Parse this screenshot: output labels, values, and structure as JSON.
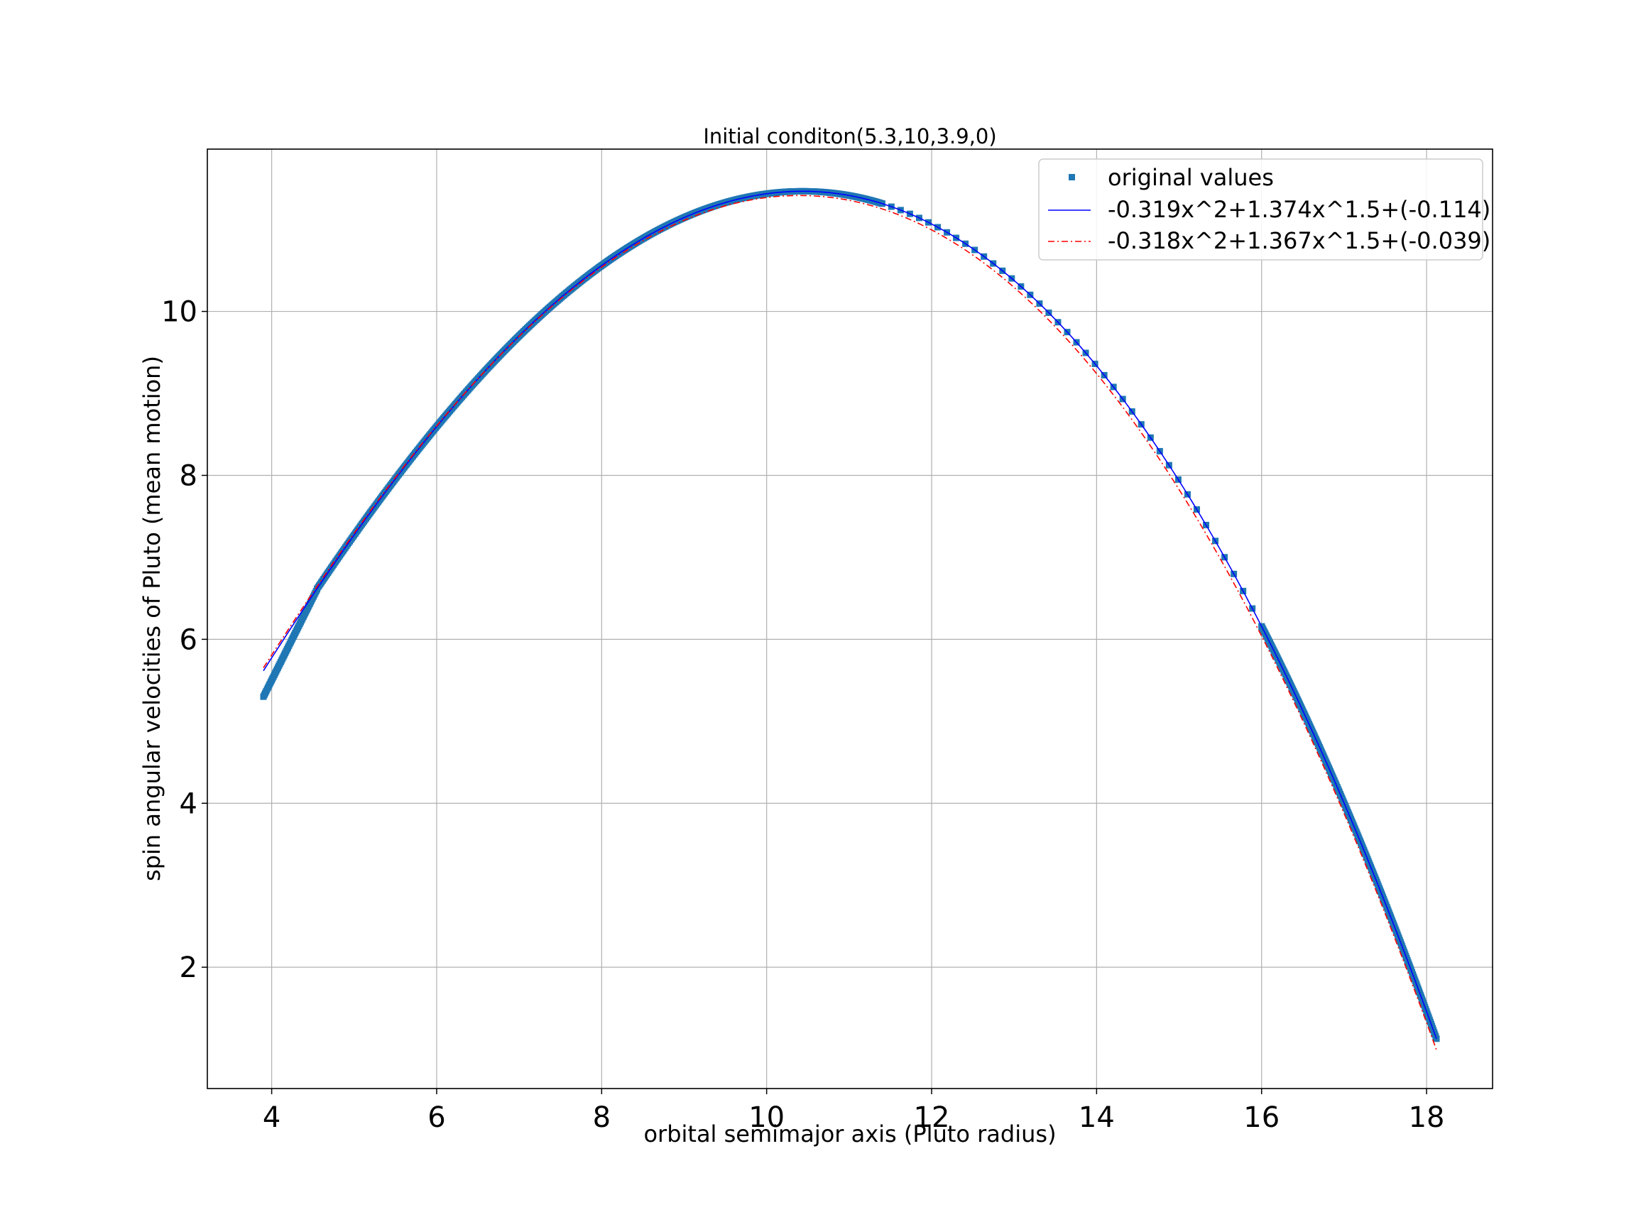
{
  "chart_data": {
    "type": "scatter",
    "title": "Initial conditon(5.3,10,3.9,0)",
    "xlabel": "orbital semimajor axis (Pluto radius)",
    "ylabel": "spin angular velocities of Pluto (mean motion)",
    "xlim": [
      3.22,
      18.8
    ],
    "ylim": [
      0.52,
      11.98
    ],
    "xticks": [
      4,
      6,
      8,
      10,
      12,
      14,
      16,
      18
    ],
    "yticks": [
      2,
      4,
      6,
      8,
      10
    ],
    "grid": true,
    "legend_position": "top-right",
    "series": [
      {
        "name": "original values",
        "kind": "markers",
        "color": "#1f77b4",
        "marker": "square",
        "segments": [
          {
            "x_start": 3.9,
            "x_end": 4.55,
            "count": 60,
            "y_start": 5.3,
            "y_end": 6.61
          },
          {
            "x_start": 4.55,
            "x_end": 11.4,
            "count": 520
          },
          {
            "x_start": 11.4,
            "x_end": 16.0,
            "count": 42
          },
          {
            "x_start": 16.0,
            "x_end": 18.12,
            "count": 230
          }
        ]
      },
      {
        "name": "-0.319x^2+1.374x^1.5+(-0.114)",
        "kind": "line",
        "color": "#0000ff",
        "style": "solid",
        "coefficients": {
          "a": -0.319,
          "b": 1.374,
          "c": -0.114
        },
        "x_range": [
          3.9,
          18.12
        ]
      },
      {
        "name": "-0.318x^2+1.367x^1.5+(-0.039)",
        "kind": "line",
        "color": "#ff0000",
        "style": "dashdot",
        "coefficients": {
          "a": -0.318,
          "b": 1.367,
          "c": -0.039
        },
        "x_range": [
          3.9,
          18.12
        ]
      }
    ]
  }
}
